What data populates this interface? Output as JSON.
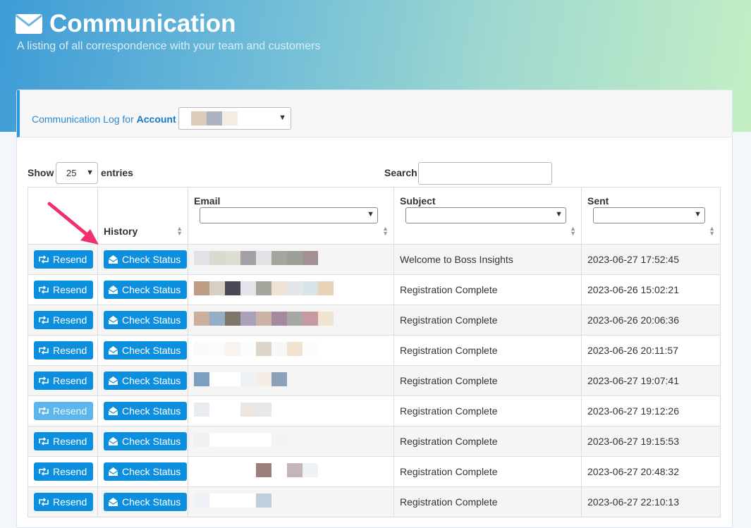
{
  "header": {
    "title": "Communication",
    "subtitle": "A listing of all correspondence with your team and customers",
    "icon": "envelope-icon"
  },
  "card": {
    "log_label_prefix": "Communication Log for",
    "log_label_bold": "Account"
  },
  "controls": {
    "show_label": "Show",
    "page_size": "25",
    "entries_label": "entries",
    "search_label": "Search:",
    "search_value": ""
  },
  "table": {
    "columns": {
      "history": "History",
      "email": "Email",
      "subject": "Subject",
      "sent": "Sent"
    },
    "resend_label": "Resend",
    "check_status_label": "Check Status",
    "rows": [
      {
        "subject": "Welcome to Boss Insights",
        "sent": "2023-06-27 17:52:45"
      },
      {
        "subject": "Registration Complete",
        "sent": "2023-06-26 15:02:21"
      },
      {
        "subject": "Registration Complete",
        "sent": "2023-06-26 20:06:36"
      },
      {
        "subject": "Registration Complete",
        "sent": "2023-06-26 20:11:57"
      },
      {
        "subject": "Registration Complete",
        "sent": "2023-06-27 19:07:41"
      },
      {
        "subject": "Registration Complete",
        "sent": "2023-06-27 19:12:26"
      },
      {
        "subject": "Registration Complete",
        "sent": "2023-06-27 19:15:53"
      },
      {
        "subject": "Registration Complete",
        "sent": "2023-06-27 20:48:32"
      },
      {
        "subject": "Registration Complete",
        "sent": "2023-06-27 22:10:13"
      }
    ]
  },
  "colors": {
    "primary_button": "#0d8fe0",
    "link_blue": "#2b8ad6",
    "annotation_arrow": "#f0306b"
  }
}
